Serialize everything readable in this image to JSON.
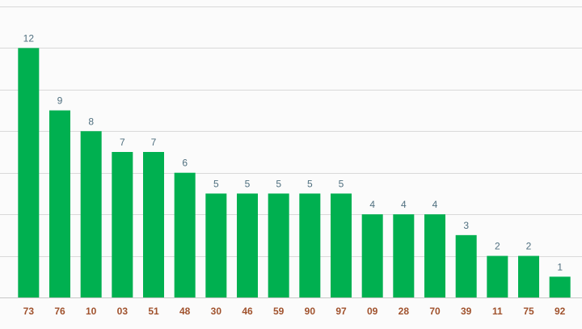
{
  "chart_data": {
    "type": "bar",
    "categories": [
      "73",
      "76",
      "10",
      "03",
      "51",
      "48",
      "30",
      "46",
      "59",
      "90",
      "97",
      "09",
      "28",
      "70",
      "39",
      "11",
      "75",
      "92"
    ],
    "values": [
      12,
      9,
      8,
      7,
      7,
      6,
      5,
      5,
      5,
      5,
      5,
      4,
      4,
      4,
      3,
      2,
      2,
      1
    ],
    "title": "",
    "xlabel": "",
    "ylabel": "",
    "ylim": [
      0,
      14
    ],
    "grid": true,
    "grid_step": 2,
    "data_labels": true,
    "colors": {
      "bar": "#00b050",
      "value_label": "#4f6f7f",
      "category_label": "#a0522d",
      "grid": "#d9d9d9"
    }
  }
}
